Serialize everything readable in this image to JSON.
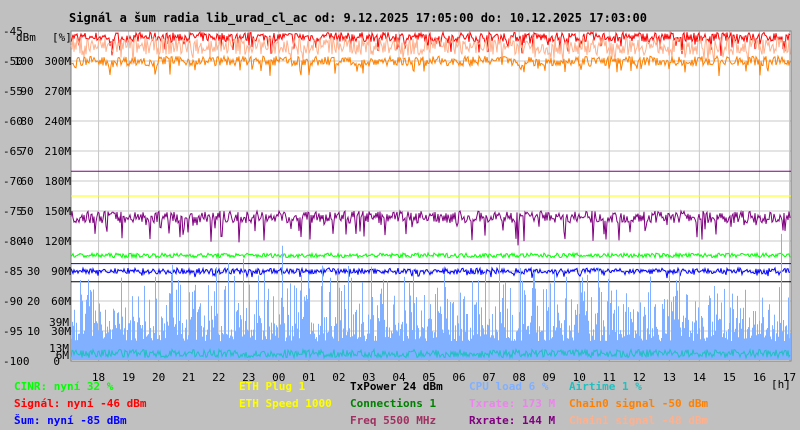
{
  "title": "Signál a šum radia lib_urad_cl_ac od: 9.12.2025 17:05:00 do: 10.12.2025 17:03:00",
  "chart_data": {
    "type": "line",
    "title": "Signál a šum radia lib_urad_cl_ac od: 9.12.2025 17:05:00 do: 10.12.2025 17:03:00",
    "y_unit_labels": [
      "dBm",
      "[%]"
    ],
    "x_unit_label": "[h]",
    "ylim_dbm": [
      -100,
      -45
    ],
    "ylim_pct": [
      0,
      100
    ],
    "ylim_rate_M": [
      0,
      330
    ],
    "y_ticks": [
      {
        "dbm": "-45",
        "pct": "",
        "rate": ""
      },
      {
        "dbm": "-50",
        "pct": "100",
        "rate": "300M"
      },
      {
        "dbm": "-55",
        "pct": "90",
        "rate": "270M"
      },
      {
        "dbm": "-60",
        "pct": "80",
        "rate": "240M"
      },
      {
        "dbm": "-65",
        "pct": "70",
        "rate": "210M"
      },
      {
        "dbm": "-70",
        "pct": "60",
        "rate": "180M"
      },
      {
        "dbm": "-75",
        "pct": "50",
        "rate": "150M"
      },
      {
        "dbm": "-80",
        "pct": "40",
        "rate": "120M"
      },
      {
        "dbm": "-85",
        "pct": "30",
        "rate": "90M"
      },
      {
        "dbm": "-90",
        "pct": "20",
        "rate": "60M"
      },
      {
        "dbm": "-95",
        "pct": "10",
        "rate": "30M"
      },
      {
        "dbm": "-100",
        "pct": "0",
        "rate": ""
      }
    ],
    "extra_rate_ticks": [
      {
        "label": "39M",
        "value": 39
      },
      {
        "label": "13M",
        "value": 13
      },
      {
        "label": "6M",
        "value": 6
      }
    ],
    "x_hours": [
      "18",
      "19",
      "20",
      "21",
      "22",
      "23",
      "00",
      "01",
      "02",
      "03",
      "04",
      "05",
      "06",
      "07",
      "08",
      "09",
      "10",
      "11",
      "12",
      "13",
      "14",
      "15",
      "16",
      "17"
    ],
    "x_range_hours": [
      17.083,
      41.05
    ],
    "grid": true,
    "series": [
      {
        "name": "Signál",
        "color": "#ff0000",
        "unit": "dBm",
        "center": -46,
        "noise": 0.8,
        "spikes": -2.5
      },
      {
        "name": "Chain1 signal",
        "color": "#ffb08c",
        "unit": "dBm",
        "center": -47.5,
        "noise": 1.5,
        "spikes": -2
      },
      {
        "name": "Chain0 signal",
        "color": "#ff8000",
        "unit": "dBm",
        "center": -50,
        "noise": 0.8,
        "spikes": -2
      },
      {
        "name": "CINR",
        "color": "#00ff00",
        "unit": "%",
        "center": 32,
        "noise": 0.7,
        "spikes": 0
      },
      {
        "name": "Šum",
        "color": "#0000ff",
        "unit": "dBm",
        "center": -85,
        "noise": 0.5,
        "spikes": -0.8
      },
      {
        "name": "Rxrate",
        "color": "#800080",
        "unit": "M",
        "center": 144,
        "noise": 6,
        "spikes": -25
      },
      {
        "name": "CPU load",
        "color": "#80b0ff",
        "unit": "%",
        "center": 6,
        "noise": 12,
        "spikes": 0
      },
      {
        "name": "Airtime",
        "color": "#20c0c0",
        "unit": "%",
        "center": 1,
        "noise": 1.5,
        "spikes": 0
      }
    ],
    "reference_lines": [
      {
        "name": "ETH Plug",
        "color": "#ffff00",
        "pct": 50
      },
      {
        "name": "threshold",
        "color": "#000000",
        "pct": 24
      },
      {
        "name": "noise-line",
        "color": "#0000ff",
        "pct": 29.5
      },
      {
        "name": "rx-line",
        "color": "#800080",
        "pct": 57.5
      },
      {
        "name": "txrate-line",
        "color": "#ee82ee",
        "pct": 4
      }
    ]
  },
  "legend": [
    {
      "id": "cinr",
      "text": "CINR: nyní 32 %",
      "color": "#00ff00",
      "col": 0,
      "row": 0
    },
    {
      "id": "signal",
      "text": "Signál: nyní -46 dBm",
      "color": "#ff0000",
      "col": 0,
      "row": 1
    },
    {
      "id": "noise",
      "text": "Šum: nyní -85 dBm",
      "color": "#0000ff",
      "col": 0,
      "row": 2
    },
    {
      "id": "eth-plug",
      "text": "ETH Plug 1",
      "color": "#ffff00",
      "col": 1,
      "row": 0
    },
    {
      "id": "eth-speed",
      "text": "ETH Speed 1000",
      "color": "#ffff00",
      "col": 1,
      "row": 1
    },
    {
      "id": "txpower",
      "text": "TxPower 24 dBm",
      "color": "#000000",
      "col": 2,
      "row": 0
    },
    {
      "id": "connections",
      "text": "Connections 1",
      "color": "#008000",
      "col": 2,
      "row": 1
    },
    {
      "id": "freq",
      "text": "Freq 5500 MHz",
      "color": "#a03060",
      "col": 2,
      "row": 2
    },
    {
      "id": "cpu",
      "text": "CPU load 6 %",
      "color": "#80b0ff",
      "col": 3,
      "row": 0
    },
    {
      "id": "txrate",
      "text": "Txrate: 173 M",
      "color": "#ee82ee",
      "col": 3,
      "row": 1
    },
    {
      "id": "rxrate",
      "text": "Rxrate: 144 M",
      "color": "#800080",
      "col": 3,
      "row": 2
    },
    {
      "id": "airtime",
      "text": "Airtime 1 %",
      "color": "#20c0c0",
      "col": 4,
      "row": 0
    },
    {
      "id": "chain0",
      "text": "Chain0 signal -50 dBm",
      "color": "#ff8000",
      "col": 4,
      "row": 1
    },
    {
      "id": "chain1",
      "text": "Chain1 signal -48 dBm",
      "color": "#ffb08c",
      "col": 4,
      "row": 2
    }
  ]
}
